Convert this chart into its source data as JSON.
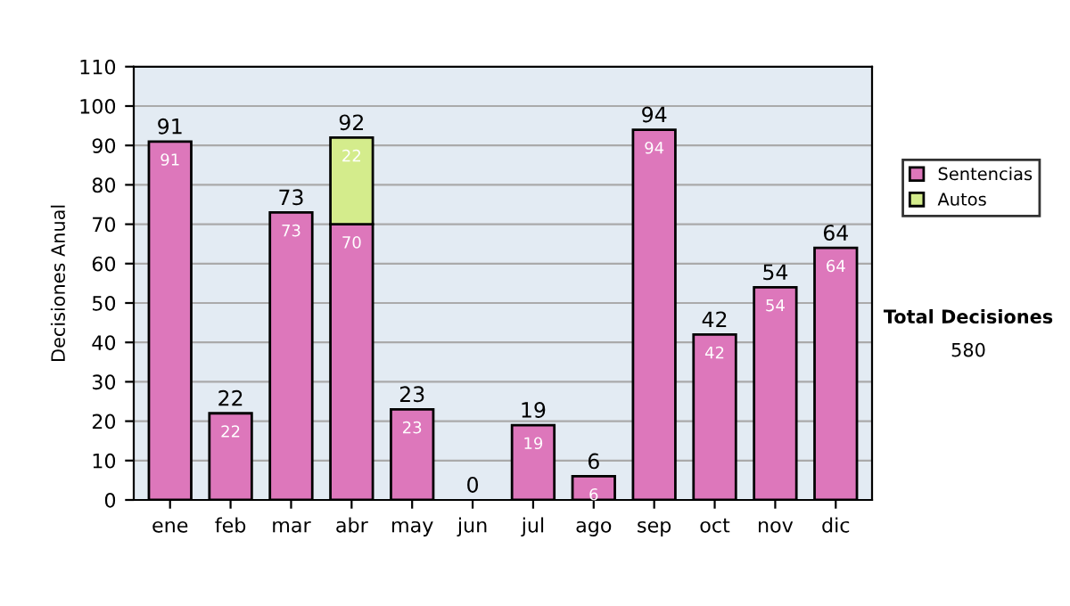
{
  "chart_data": {
    "type": "bar",
    "ylabel": "Decisiones Anual",
    "categories": [
      "ene",
      "feb",
      "mar",
      "abr",
      "may",
      "jun",
      "jul",
      "ago",
      "sep",
      "oct",
      "nov",
      "dic"
    ],
    "series": [
      {
        "name": "Sentencias",
        "color": "#dd77bb",
        "values": [
          91,
          22,
          73,
          70,
          23,
          0,
          19,
          6,
          94,
          42,
          54,
          64
        ],
        "value_labels": [
          "91",
          "22",
          "73",
          "70",
          "23",
          null,
          "19",
          "6",
          "94",
          "42",
          "54",
          "64"
        ]
      },
      {
        "name": "Autos",
        "color": "#d4ec8c",
        "values": [
          0,
          0,
          0,
          22,
          0,
          0,
          0,
          0,
          0,
          0,
          0,
          0
        ],
        "value_labels": [
          null,
          null,
          null,
          "22",
          null,
          null,
          null,
          null,
          null,
          null,
          null,
          null
        ]
      }
    ],
    "stacked": true,
    "totals": [
      "91",
      "22",
      "73",
      "92",
      "23",
      "0",
      "19",
      "6",
      "94",
      "42",
      "54",
      "64"
    ],
    "ylim": [
      0,
      110
    ],
    "yticks": [
      0,
      10,
      20,
      30,
      40,
      50,
      60,
      70,
      80,
      90,
      100,
      110
    ],
    "grid": "y",
    "legend": "right",
    "annotations": [
      "Total Decisiones",
      "580"
    ]
  }
}
